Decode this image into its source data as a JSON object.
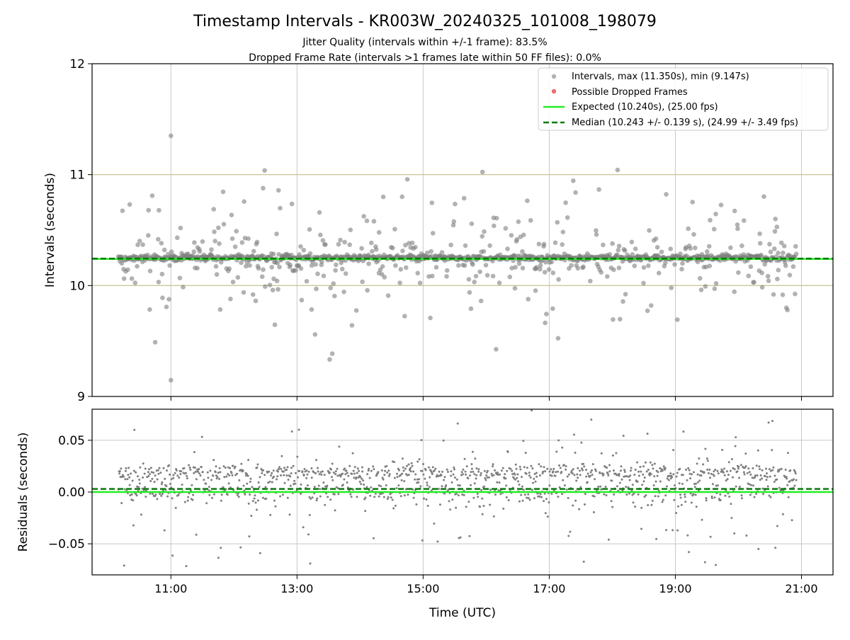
{
  "title": "Timestamp Intervals - KR003W_20240325_101008_198079",
  "subtitle1": "Jitter Quality (intervals within +/-1 frame): 83.5%",
  "subtitle2": "Dropped Frame Rate (intervals >1 frames late within 50 FF files): 0.0%",
  "colors": {
    "points": "#7f7f7f",
    "dropped": "#e8484a",
    "expected": "#22ee22",
    "median": "#0a7a0a",
    "limit_lines": "#c9c48a",
    "grid": "#c8c8c8"
  },
  "chart_data": [
    {
      "type": "scatter",
      "ylabel": "Intervals (seconds)",
      "xlim": [
        "09:45",
        "21:30"
      ],
      "ylim": [
        9,
        12
      ],
      "yticks": [
        "9",
        "10",
        "11",
        "12"
      ],
      "grid": true,
      "legend_position": "top-right",
      "legend": [
        {
          "label": "Intervals, max (11.350s), min (9.147s)",
          "kind": "point"
        },
        {
          "label": "Possible Dropped Frames",
          "kind": "dropped"
        },
        {
          "label": "Expected (10.240s), (25.00 fps)",
          "kind": "expected"
        },
        {
          "label": "Median (10.243 +/- 0.139 s), (24.99 +/- 3.49 fps)",
          "kind": "median"
        }
      ],
      "series": [
        {
          "name": "Intervals",
          "start": "10:10",
          "end": "20:55",
          "max": 11.35,
          "min": 9.147,
          "median": 10.243
        },
        {
          "name": "Possible Dropped Frames",
          "count": 0
        }
      ],
      "hlines": {
        "expected": 10.24,
        "median": 10.243,
        "limits": [
          10.0,
          11.0
        ]
      }
    },
    {
      "type": "scatter",
      "xlabel": "Time (UTC)",
      "ylabel": "Residuals (seconds)",
      "xlim": [
        "09:45",
        "21:30"
      ],
      "ylim": [
        -0.08,
        0.08
      ],
      "yticks": [
        "−0.05",
        "0.00",
        "0.05"
      ],
      "xticks": [
        "11:00",
        "13:00",
        "15:00",
        "17:00",
        "19:00",
        "21:00"
      ],
      "grid": true,
      "hlines": {
        "expected": 0.0,
        "median": 0.003
      }
    }
  ]
}
